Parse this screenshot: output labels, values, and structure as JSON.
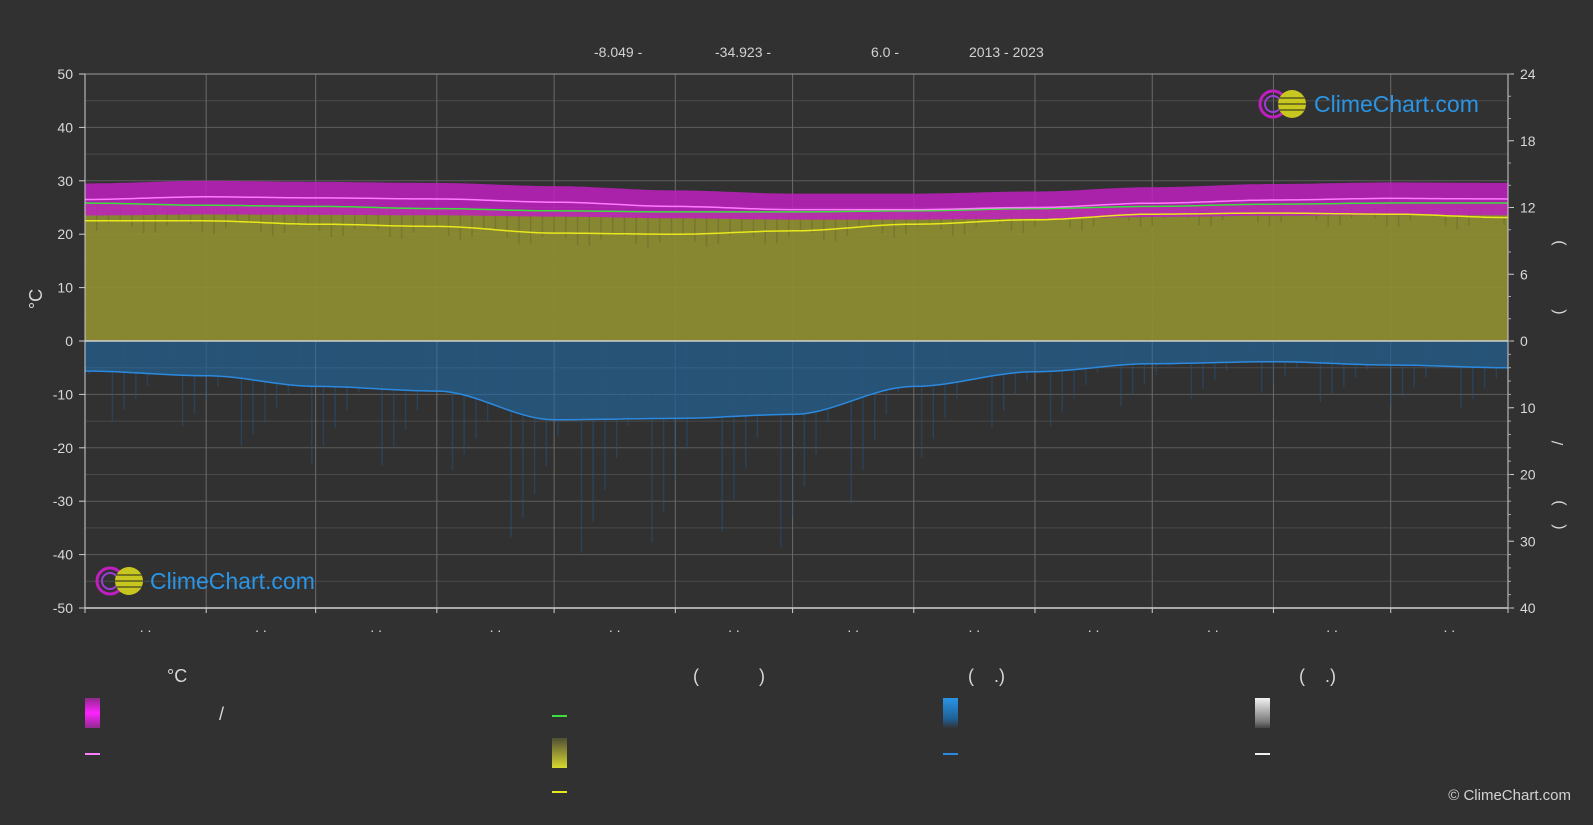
{
  "header": {
    "lat": "-8.049 -",
    "lon": "-34.923 -",
    "elev": "6.0 -",
    "years": "2013 - 2023"
  },
  "watermark": {
    "text": "ClimeChart.com"
  },
  "copyright": "© ClimeChart.com",
  "legend": {
    "col1_head": "°C",
    "col2_head": "(            )",
    "col3_head": "(    .)",
    "col4_head": "(    .)",
    "slash": "/"
  },
  "colors": {
    "background": "#313131",
    "temp_band": "#c01ec0",
    "max_line": "#ff7cff",
    "daylight_line": "#3ddf3d",
    "sunshine_fill": "#8c8c32",
    "sunshine_line": "#e8e81c",
    "precip": "#1f6fb0",
    "precip_line": "#2b8ae0",
    "grid": "#5a5a5a",
    "accent": "#2a95e6"
  },
  "chart_data": {
    "type": "area",
    "ylabel_left": "°C",
    "ylim_left": [
      -50,
      50
    ],
    "yticks_left": [
      "50",
      "40",
      "30",
      "20",
      "10",
      "0",
      "-10",
      "-20",
      "-30",
      "-40",
      "-50"
    ],
    "ylim_right_top": [
      0,
      24
    ],
    "yticks_right_top": [
      "24",
      "18",
      "12",
      "6",
      "0"
    ],
    "ylim_right_bottom": [
      0,
      40
    ],
    "yticks_right_bottom": [
      "10",
      "20",
      "30",
      "40"
    ],
    "right_axis_marks": [
      ")",
      "(",
      "/",
      ")",
      "("
    ],
    "month_ticks": [
      ". .",
      ". .",
      ". .",
      ". .",
      ". .",
      ". .",
      ". .",
      ". .",
      ". .",
      ". .",
      ". .",
      ". ."
    ],
    "x_days": [
      1,
      32,
      60,
      91,
      121,
      152,
      182,
      213,
      244,
      274,
      305,
      335,
      365
    ],
    "series": [
      {
        "key": "max_temp",
        "values": [
          26.5,
          27.0,
          26.8,
          26.6,
          26.0,
          25.2,
          24.6,
          24.6,
          25.0,
          25.8,
          26.4,
          26.7,
          26.6
        ]
      },
      {
        "key": "daylight_hours",
        "values": [
          12.4,
          12.2,
          12.1,
          11.9,
          11.7,
          11.6,
          11.6,
          11.7,
          11.9,
          12.1,
          12.3,
          12.4,
          12.4
        ]
      },
      {
        "key": "sunshine_hours",
        "values": [
          10.8,
          10.8,
          10.5,
          10.3,
          9.7,
          9.6,
          9.9,
          10.5,
          10.9,
          11.4,
          11.5,
          11.4,
          11.1
        ]
      },
      {
        "key": "precipitation_mm",
        "values": [
          4.5,
          5.2,
          6.8,
          7.5,
          11.8,
          11.6,
          11.0,
          6.8,
          4.6,
          3.4,
          3.1,
          3.6,
          4.0
        ]
      }
    ],
    "temp_band": {
      "upper": 29.5,
      "lower": 23.5
    },
    "grid": true
  }
}
